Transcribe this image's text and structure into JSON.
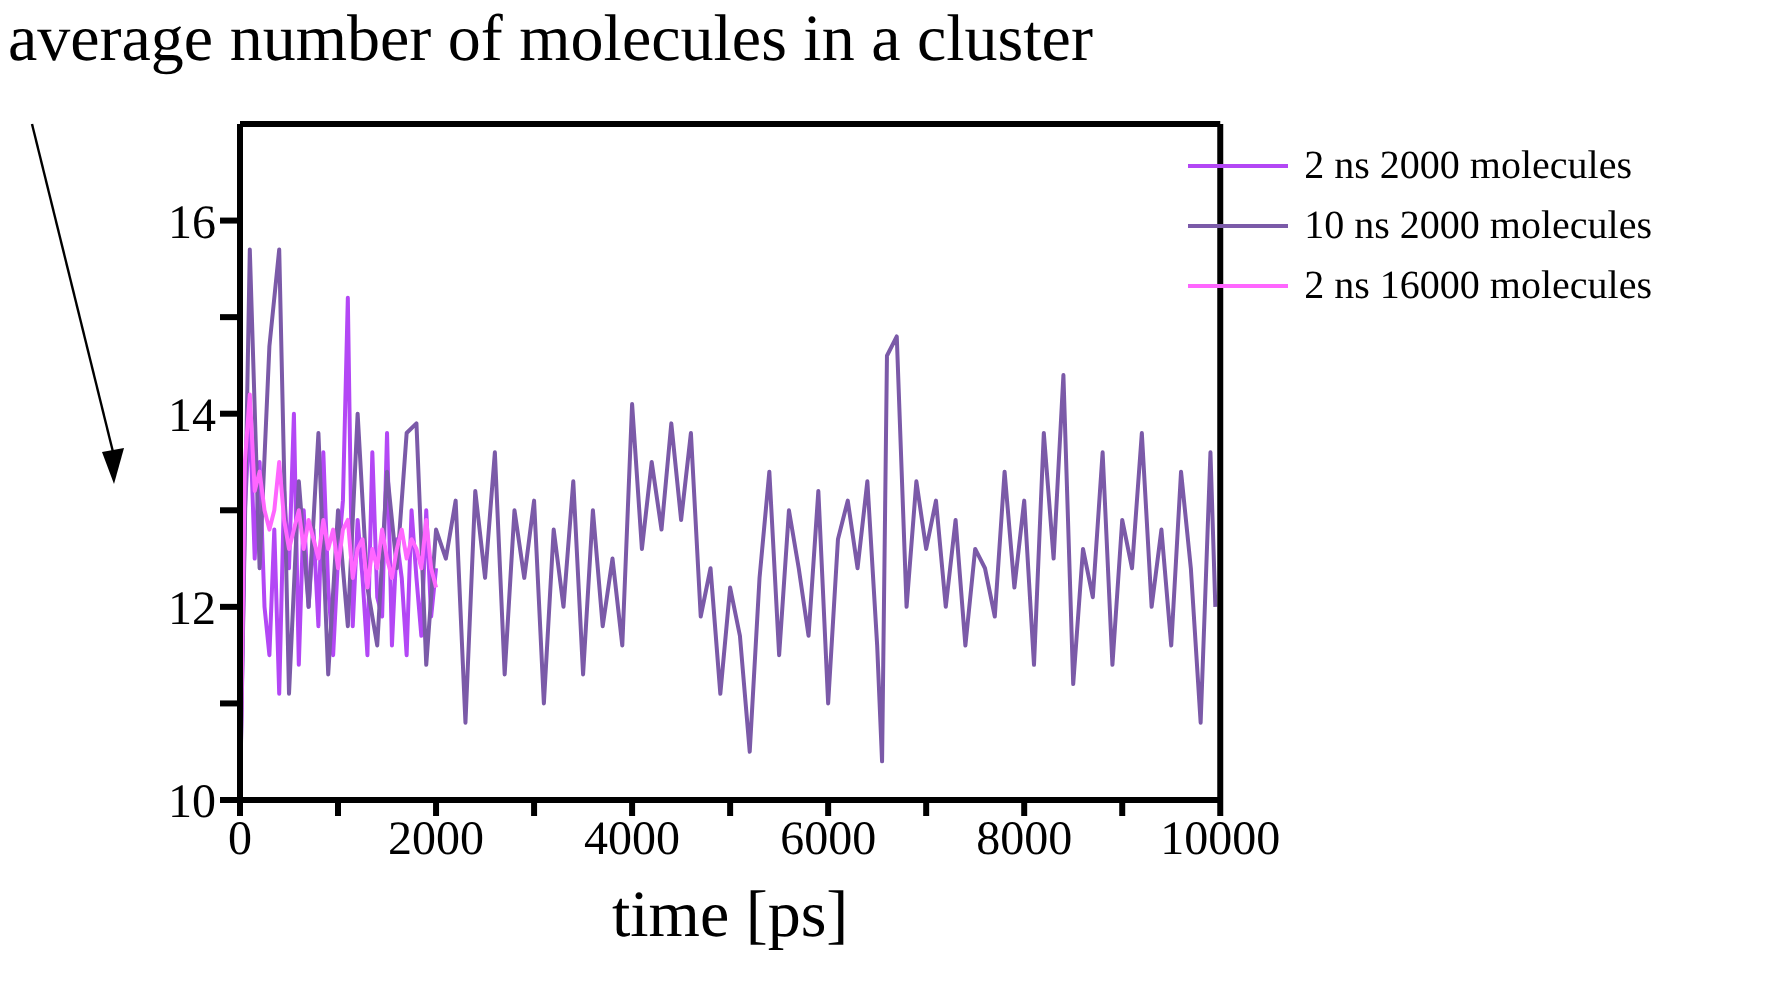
{
  "chart_data": {
    "type": "line",
    "ylabel": "average number of molecules in a cluster",
    "xlabel": "time [ps]",
    "xlim": [
      0,
      10000
    ],
    "xticks": [
      0,
      {
        "value": 1000,
        "label": null
      },
      2000,
      {
        "value": 3000,
        "label": null
      },
      4000,
      {
        "value": 5000,
        "label": null
      },
      6000,
      {
        "value": 7000,
        "label": null
      },
      8000,
      {
        "value": 9000,
        "label": null
      },
      10000
    ],
    "ylim": [
      10,
      17
    ],
    "yticks": [
      10,
      {
        "value": 11,
        "label": null
      },
      12,
      {
        "value": 13,
        "label": null
      },
      14,
      {
        "value": 15,
        "label": null
      },
      16
    ],
    "legend": "top right",
    "grid": false,
    "series": [
      {
        "name": "2 ns 2000 molecules",
        "color": "#b347f5",
        "x": [
          0,
          50,
          100,
          150,
          200,
          250,
          300,
          350,
          400,
          450,
          500,
          550,
          600,
          650,
          700,
          750,
          800,
          850,
          900,
          950,
          1000,
          1050,
          1100,
          1150,
          1200,
          1250,
          1300,
          1350,
          1400,
          1450,
          1500,
          1550,
          1600,
          1650,
          1700,
          1750,
          1800,
          1850,
          1900,
          1950,
          2000
        ],
        "values": [
          10.0,
          13.0,
          14.0,
          12.5,
          13.5,
          12.0,
          11.5,
          12.8,
          11.1,
          13.2,
          12.4,
          14.0,
          11.4,
          13.0,
          12.0,
          12.8,
          11.8,
          13.6,
          12.2,
          11.5,
          12.5,
          13.1,
          15.2,
          11.8,
          12.9,
          12.3,
          11.5,
          13.6,
          12.1,
          11.9,
          13.8,
          11.6,
          12.7,
          12.3,
          11.5,
          13.0,
          12.3,
          11.7,
          13.0,
          11.9,
          12.4
        ]
      },
      {
        "name": "10 ns 2000 molecules",
        "color": "#7b5aa8",
        "x": [
          0,
          100,
          200,
          300,
          400,
          500,
          600,
          700,
          800,
          900,
          1000,
          1100,
          1200,
          1300,
          1400,
          1500,
          1600,
          1700,
          1800,
          1900,
          2000,
          2100,
          2200,
          2300,
          2400,
          2500,
          2600,
          2700,
          2800,
          2900,
          3000,
          3100,
          3200,
          3300,
          3400,
          3500,
          3600,
          3700,
          3800,
          3900,
          4000,
          4100,
          4200,
          4300,
          4400,
          4500,
          4600,
          4700,
          4800,
          4900,
          5000,
          5100,
          5200,
          5300,
          5400,
          5500,
          5600,
          5700,
          5800,
          5900,
          6000,
          6100,
          6200,
          6300,
          6400,
          6500,
          6550,
          6600,
          6700,
          6800,
          6900,
          7000,
          7100,
          7200,
          7300,
          7400,
          7500,
          7600,
          7700,
          7800,
          7900,
          8000,
          8100,
          8200,
          8300,
          8400,
          8500,
          8600,
          8700,
          8800,
          8900,
          9000,
          9100,
          9200,
          9300,
          9400,
          9500,
          9600,
          9700,
          9800,
          9900,
          9950
        ],
        "values": [
          10.0,
          15.7,
          12.4,
          14.7,
          15.7,
          11.1,
          13.3,
          12.0,
          13.8,
          11.3,
          13.0,
          11.8,
          14.0,
          12.2,
          11.6,
          13.4,
          12.4,
          13.8,
          13.9,
          11.4,
          12.8,
          12.5,
          13.1,
          10.8,
          13.2,
          12.3,
          13.6,
          11.3,
          13.0,
          12.3,
          13.1,
          11.0,
          12.8,
          12.0,
          13.3,
          11.3,
          13.0,
          11.8,
          12.5,
          11.6,
          14.1,
          12.6,
          13.5,
          12.8,
          13.9,
          12.9,
          13.8,
          11.9,
          12.4,
          11.1,
          12.2,
          11.7,
          10.5,
          12.3,
          13.4,
          11.5,
          13.0,
          12.4,
          11.7,
          13.2,
          11.0,
          12.7,
          13.1,
          12.4,
          13.3,
          11.6,
          10.4,
          14.6,
          14.8,
          12.0,
          13.3,
          12.6,
          13.1,
          12.0,
          12.9,
          11.6,
          12.6,
          12.4,
          11.9,
          13.4,
          12.2,
          13.1,
          11.4,
          13.8,
          12.5,
          14.4,
          11.2,
          12.6,
          12.1,
          13.6,
          11.4,
          12.9,
          12.4,
          13.8,
          12.0,
          12.8,
          11.6,
          13.4,
          12.4,
          10.8,
          13.6,
          12.0
        ]
      },
      {
        "name": "2 ns 16000 molecules",
        "color": "#ff66ff",
        "x": [
          0,
          50,
          100,
          150,
          200,
          250,
          300,
          350,
          400,
          450,
          500,
          550,
          600,
          650,
          700,
          750,
          800,
          850,
          900,
          950,
          1000,
          1050,
          1100,
          1150,
          1200,
          1250,
          1300,
          1350,
          1400,
          1450,
          1500,
          1550,
          1600,
          1650,
          1700,
          1750,
          1800,
          1850,
          1900,
          1950,
          2000
        ],
        "values": [
          10.0,
          13.5,
          14.2,
          13.2,
          13.4,
          13.0,
          12.8,
          13.0,
          13.5,
          12.9,
          12.6,
          12.8,
          13.0,
          12.6,
          12.9,
          12.7,
          12.5,
          12.9,
          12.6,
          12.8,
          12.4,
          12.8,
          12.9,
          12.3,
          12.6,
          12.7,
          12.2,
          12.6,
          12.4,
          12.8,
          12.5,
          12.3,
          12.6,
          12.8,
          12.5,
          12.7,
          12.6,
          12.4,
          12.9,
          12.4,
          12.2
        ]
      }
    ]
  }
}
